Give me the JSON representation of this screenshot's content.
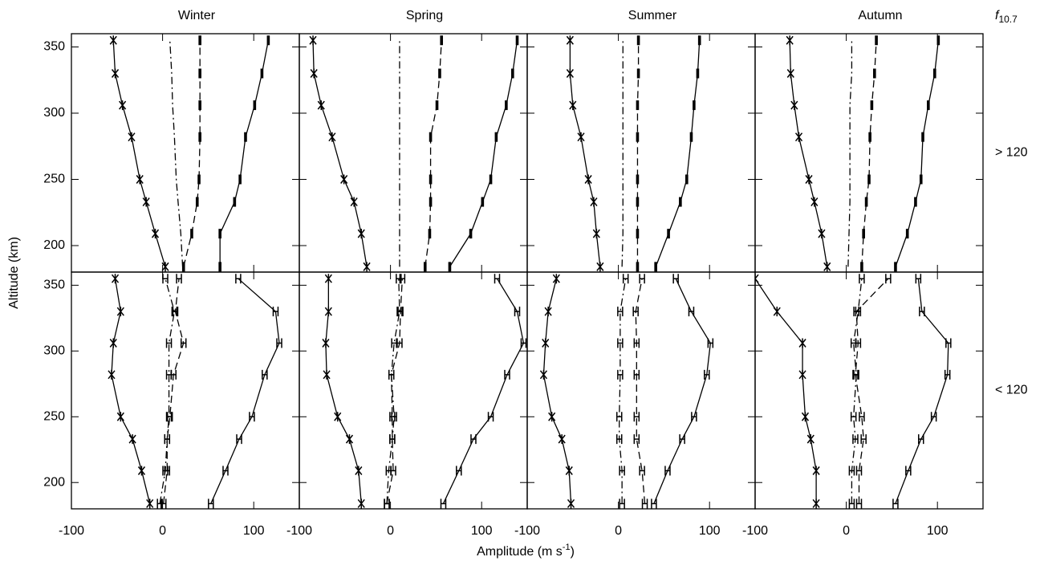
{
  "figure": {
    "ylabel": "Altitude (km)",
    "xlabel": [
      "Amplitude (m s",
      "-1",
      ")"
    ],
    "legend_title": [
      "f",
      "10.7"
    ]
  },
  "chart_data": [
    {
      "type": "line",
      "title": "Winter",
      "y": [
        184,
        209,
        233,
        250,
        282,
        306,
        330,
        355
      ],
      "xlim": [
        -100,
        150
      ],
      "ylim": [
        180,
        360
      ],
      "xticks": [
        -100,
        0,
        100
      ],
      "yticks": [
        200,
        250,
        300,
        350
      ],
      "series": [
        {
          "color": "#000000",
          "linestyle": "solid",
          "marker": "bar",
          "values": [
            63,
            63,
            79,
            85,
            91,
            101,
            109,
            116
          ]
        },
        {
          "color": "#000000",
          "linestyle": "dashed",
          "marker": "bar",
          "values": [
            23,
            32,
            38,
            40,
            41,
            41,
            41,
            41
          ]
        },
        {
          "color": "#000000",
          "linestyle": "dashdot",
          "marker": "none",
          "values": [
            22,
            20,
            17,
            15,
            13,
            11,
            10,
            8
          ]
        },
        {
          "color": "#000000",
          "linestyle": "solid",
          "marker": "asterisk",
          "values": [
            3,
            -8,
            -18,
            -25,
            -34,
            -44,
            -52,
            -54
          ]
        }
      ]
    },
    {
      "type": "line",
      "title": "Spring",
      "y": [
        184,
        209,
        233,
        250,
        282,
        306,
        330,
        355
      ],
      "xlim": [
        -100,
        150
      ],
      "ylim": [
        180,
        360
      ],
      "xticks": [
        -100,
        0,
        100
      ],
      "yticks": [
        200,
        250,
        300,
        350
      ],
      "series": [
        {
          "color": "#000000",
          "linestyle": "solid",
          "marker": "bar",
          "values": [
            65,
            88,
            101,
            110,
            116,
            127,
            134,
            139
          ]
        },
        {
          "color": "#000000",
          "linestyle": "dashed",
          "marker": "bar",
          "values": [
            38,
            43,
            44,
            44,
            44,
            51,
            54,
            56
          ]
        },
        {
          "color": "#000000",
          "linestyle": "dashdot",
          "marker": "none",
          "values": [
            10,
            10,
            10,
            10,
            10,
            10,
            10,
            10
          ]
        },
        {
          "color": "#000000",
          "linestyle": "solid",
          "marker": "asterisk",
          "values": [
            -26,
            -32,
            -40,
            -51,
            -64,
            -76,
            -84,
            -85
          ]
        }
      ]
    },
    {
      "type": "line",
      "title": "Summer",
      "y": [
        184,
        209,
        233,
        250,
        282,
        306,
        330,
        355
      ],
      "xlim": [
        -100,
        150
      ],
      "ylim": [
        180,
        360
      ],
      "xticks": [
        -100,
        0,
        100
      ],
      "yticks": [
        200,
        250,
        300,
        350
      ],
      "series": [
        {
          "color": "#000000",
          "linestyle": "solid",
          "marker": "bar",
          "values": [
            41,
            55,
            68,
            75,
            80,
            83,
            87,
            89
          ]
        },
        {
          "color": "#000000",
          "linestyle": "dashed",
          "marker": "bar",
          "values": [
            21,
            21,
            21,
            21,
            21,
            21,
            22,
            22
          ]
        },
        {
          "color": "#000000",
          "linestyle": "dashdot",
          "marker": "none",
          "values": [
            4,
            5,
            5,
            5,
            5,
            5,
            5,
            5
          ]
        },
        {
          "color": "#000000",
          "linestyle": "solid",
          "marker": "asterisk",
          "values": [
            -20,
            -24,
            -27,
            -33,
            -41,
            -50,
            -53,
            -53
          ]
        }
      ]
    },
    {
      "type": "line",
      "title": "Autumn",
      "side_label": "> 120",
      "y": [
        184,
        209,
        233,
        250,
        282,
        306,
        330,
        355
      ],
      "xlim": [
        -100,
        150
      ],
      "ylim": [
        180,
        360
      ],
      "xticks": [
        -100,
        0,
        100
      ],
      "yticks": [
        200,
        250,
        300,
        350
      ],
      "series": [
        {
          "color": "#000000",
          "linestyle": "solid",
          "marker": "bar",
          "values": [
            54,
            67,
            76,
            82,
            84,
            90,
            97,
            101
          ]
        },
        {
          "color": "#000000",
          "linestyle": "dashed",
          "marker": "bar",
          "values": [
            17,
            19,
            22,
            25,
            26,
            28,
            31,
            33
          ]
        },
        {
          "color": "#000000",
          "linestyle": "dashdot",
          "marker": "none",
          "values": [
            2,
            3,
            4,
            4,
            4,
            4,
            6,
            6
          ]
        },
        {
          "color": "#000000",
          "linestyle": "solid",
          "marker": "asterisk",
          "values": [
            -21,
            -27,
            -35,
            -41,
            -52,
            -57,
            -61,
            -62
          ]
        }
      ]
    },
    {
      "type": "line",
      "y": [
        184,
        209,
        233,
        250,
        282,
        306,
        330,
        355
      ],
      "xlim": [
        -100,
        150
      ],
      "ylim": [
        180,
        360
      ],
      "xticks": [
        -100,
        0,
        100
      ],
      "yticks": [
        200,
        250,
        300,
        350
      ],
      "series": [
        {
          "color": "#000000",
          "linestyle": "solid",
          "marker": "h",
          "values": [
            53,
            69,
            84,
            98,
            112,
            128,
            124,
            83
          ]
        },
        {
          "color": "#000000",
          "linestyle": "dashed",
          "marker": "h",
          "values": [
            1,
            5,
            5,
            8,
            12,
            23,
            14,
            18
          ]
        },
        {
          "color": "#000000",
          "linestyle": "dashdot",
          "marker": "h",
          "values": [
            -3,
            3,
            5,
            7,
            7,
            7,
            13,
            3
          ]
        },
        {
          "color": "#000000",
          "linestyle": "solid",
          "marker": "asterisk",
          "values": [
            -14,
            -23,
            -33,
            -46,
            -56,
            -54,
            -46,
            -52
          ]
        }
      ]
    },
    {
      "type": "line",
      "y": [
        184,
        209,
        233,
        250,
        282,
        306,
        330,
        355
      ],
      "xlim": [
        -100,
        150
      ],
      "ylim": [
        180,
        360
      ],
      "xticks": [
        -100,
        0,
        100
      ],
      "yticks": [
        200,
        250,
        300,
        350
      ],
      "series": [
        {
          "color": "#000000",
          "linestyle": "solid",
          "marker": "h",
          "values": [
            58,
            75,
            91,
            110,
            128,
            146,
            139,
            117
          ]
        },
        {
          "color": "#000000",
          "linestyle": "dashed",
          "marker": "h",
          "values": [
            -4,
            3,
            2,
            2,
            1,
            10,
            11,
            13
          ]
        },
        {
          "color": "#000000",
          "linestyle": "dashdot",
          "marker": "h",
          "values": [
            -4,
            -2,
            2,
            4,
            1,
            4,
            10,
            9
          ]
        },
        {
          "color": "#000000",
          "linestyle": "solid",
          "marker": "asterisk",
          "values": [
            -32,
            -35,
            -45,
            -58,
            -70,
            -71,
            -68,
            -68
          ]
        }
      ]
    },
    {
      "type": "line",
      "y": [
        184,
        209,
        233,
        250,
        282,
        306,
        330,
        355
      ],
      "xlim": [
        -100,
        150
      ],
      "ylim": [
        180,
        360
      ],
      "xticks": [
        -100,
        0,
        100
      ],
      "yticks": [
        200,
        250,
        300,
        350
      ],
      "series": [
        {
          "color": "#000000",
          "linestyle": "solid",
          "marker": "h",
          "values": [
            39,
            54,
            70,
            83,
            97,
            101,
            80,
            63
          ]
        },
        {
          "color": "#000000",
          "linestyle": "dashed",
          "marker": "h",
          "values": [
            29,
            26,
            20,
            20,
            20,
            20,
            19,
            26
          ]
        },
        {
          "color": "#000000",
          "linestyle": "dashdot",
          "marker": "h",
          "values": [
            4,
            4,
            1,
            1,
            2,
            2,
            2,
            8
          ]
        },
        {
          "color": "#000000",
          "linestyle": "solid",
          "marker": "asterisk",
          "values": [
            -52,
            -54,
            -62,
            -73,
            -82,
            -80,
            -77,
            -68
          ]
        }
      ]
    },
    {
      "type": "line",
      "side_label": "< 120",
      "y": [
        184,
        209,
        233,
        250,
        282,
        306,
        330,
        355
      ],
      "xlim": [
        -100,
        150
      ],
      "ylim": [
        180,
        360
      ],
      "xticks": [
        -100,
        0,
        100
      ],
      "yticks": [
        200,
        250,
        300,
        350
      ],
      "series": [
        {
          "color": "#000000",
          "linestyle": "solid",
          "marker": "h",
          "values": [
            54,
            68,
            82,
            96,
            111,
            112,
            83,
            79
          ]
        },
        {
          "color": "#000000",
          "linestyle": "dashed",
          "marker": "h",
          "values": [
            14,
            14,
            19,
            17,
            10,
            13,
            11,
            46
          ]
        },
        {
          "color": "#000000",
          "linestyle": "dashdot",
          "marker": "h",
          "values": [
            6,
            6,
            10,
            8,
            11,
            8,
            13,
            17
          ]
        },
        {
          "color": "#000000",
          "linestyle": "solid",
          "marker": "asterisk",
          "values": [
            -33,
            -33,
            -39,
            -45,
            -48,
            -48,
            -76,
            -100
          ]
        }
      ]
    }
  ]
}
